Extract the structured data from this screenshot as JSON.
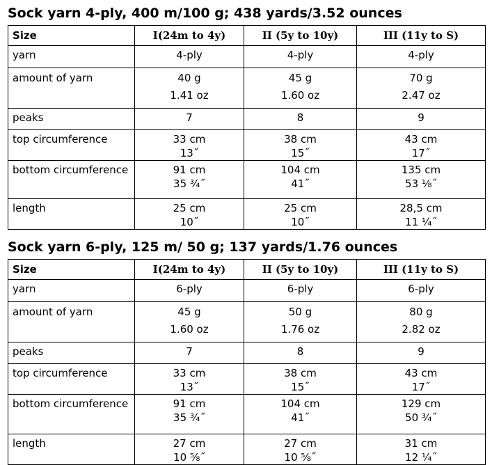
{
  "tables": [
    {
      "title": "Sock yarn 4-ply, 400 m/100 g; 438 yards/3.52 ounces",
      "rows": [
        [
          [
            "Size"
          ],
          [
            "I(24m to 4y)"
          ],
          [
            "II (5y to 10y)"
          ],
          [
            "III (11y to S)"
          ]
        ],
        [
          [
            "yarn"
          ],
          [
            "4-ply"
          ],
          [
            "4-ply"
          ],
          [
            "4-ply"
          ]
        ],
        [
          [
            "amount of yarn"
          ],
          [
            "40 g",
            "1.41 oz"
          ],
          [
            "45 g",
            "1.60 oz"
          ],
          [
            "70 g",
            "2.47 oz"
          ]
        ],
        [
          [
            "peaks"
          ],
          [
            "7"
          ],
          [
            "8"
          ],
          [
            "9"
          ]
        ],
        [
          [
            "top circumference"
          ],
          [
            "33 cm",
            "13˝"
          ],
          [
            "38 cm",
            "15˝"
          ],
          [
            "43 cm",
            "17˝"
          ]
        ],
        [
          [
            "bottom circumference"
          ],
          [
            "91 cm",
            "35 ¾˝"
          ],
          [
            "104 cm",
            "41˝"
          ],
          [
            "135 cm",
            "53 ⅛˝"
          ]
        ],
        [
          [
            "length"
          ],
          [
            "25 cm",
            "10˝"
          ],
          [
            "25 cm",
            "10˝"
          ],
          [
            "28,5 cm",
            "11 ¼˝"
          ]
        ]
      ]
    },
    {
      "title": "Sock yarn 6-ply, 125 m/ 50 g;  137 yards/1.76 ounces",
      "rows": [
        [
          [
            "Size"
          ],
          [
            "I(24m to 4y)"
          ],
          [
            "II (5y to 10y)"
          ],
          [
            "III (11y to S)"
          ]
        ],
        [
          [
            "yarn"
          ],
          [
            "6-ply"
          ],
          [
            "6-ply"
          ],
          [
            "6-ply"
          ]
        ],
        [
          [
            "amount of yarn"
          ],
          [
            "45 g",
            "1.60 oz"
          ],
          [
            "50 g",
            "1.76 oz"
          ],
          [
            "80 g",
            "2.82 oz"
          ]
        ],
        [
          [
            "peaks"
          ],
          [
            "7"
          ],
          [
            "8"
          ],
          [
            "9"
          ]
        ],
        [
          [
            "top circumference"
          ],
          [
            "33 cm",
            "13˝"
          ],
          [
            "38 cm",
            "15˝"
          ],
          [
            "43 cm",
            "17˝"
          ]
        ],
        [
          [
            "bottom circumference"
          ],
          [
            "91 cm",
            "35 ¾˝"
          ],
          [
            "104 cm",
            "41˝"
          ],
          [
            "129 cm",
            "50 ¾˝"
          ]
        ],
        [
          [
            "length"
          ],
          [
            "27 cm",
            "10 ⅝˝"
          ],
          [
            "27 cm",
            "10 ⅝˝"
          ],
          [
            "31 cm",
            "12 ¼˝"
          ]
        ]
      ]
    }
  ]
}
